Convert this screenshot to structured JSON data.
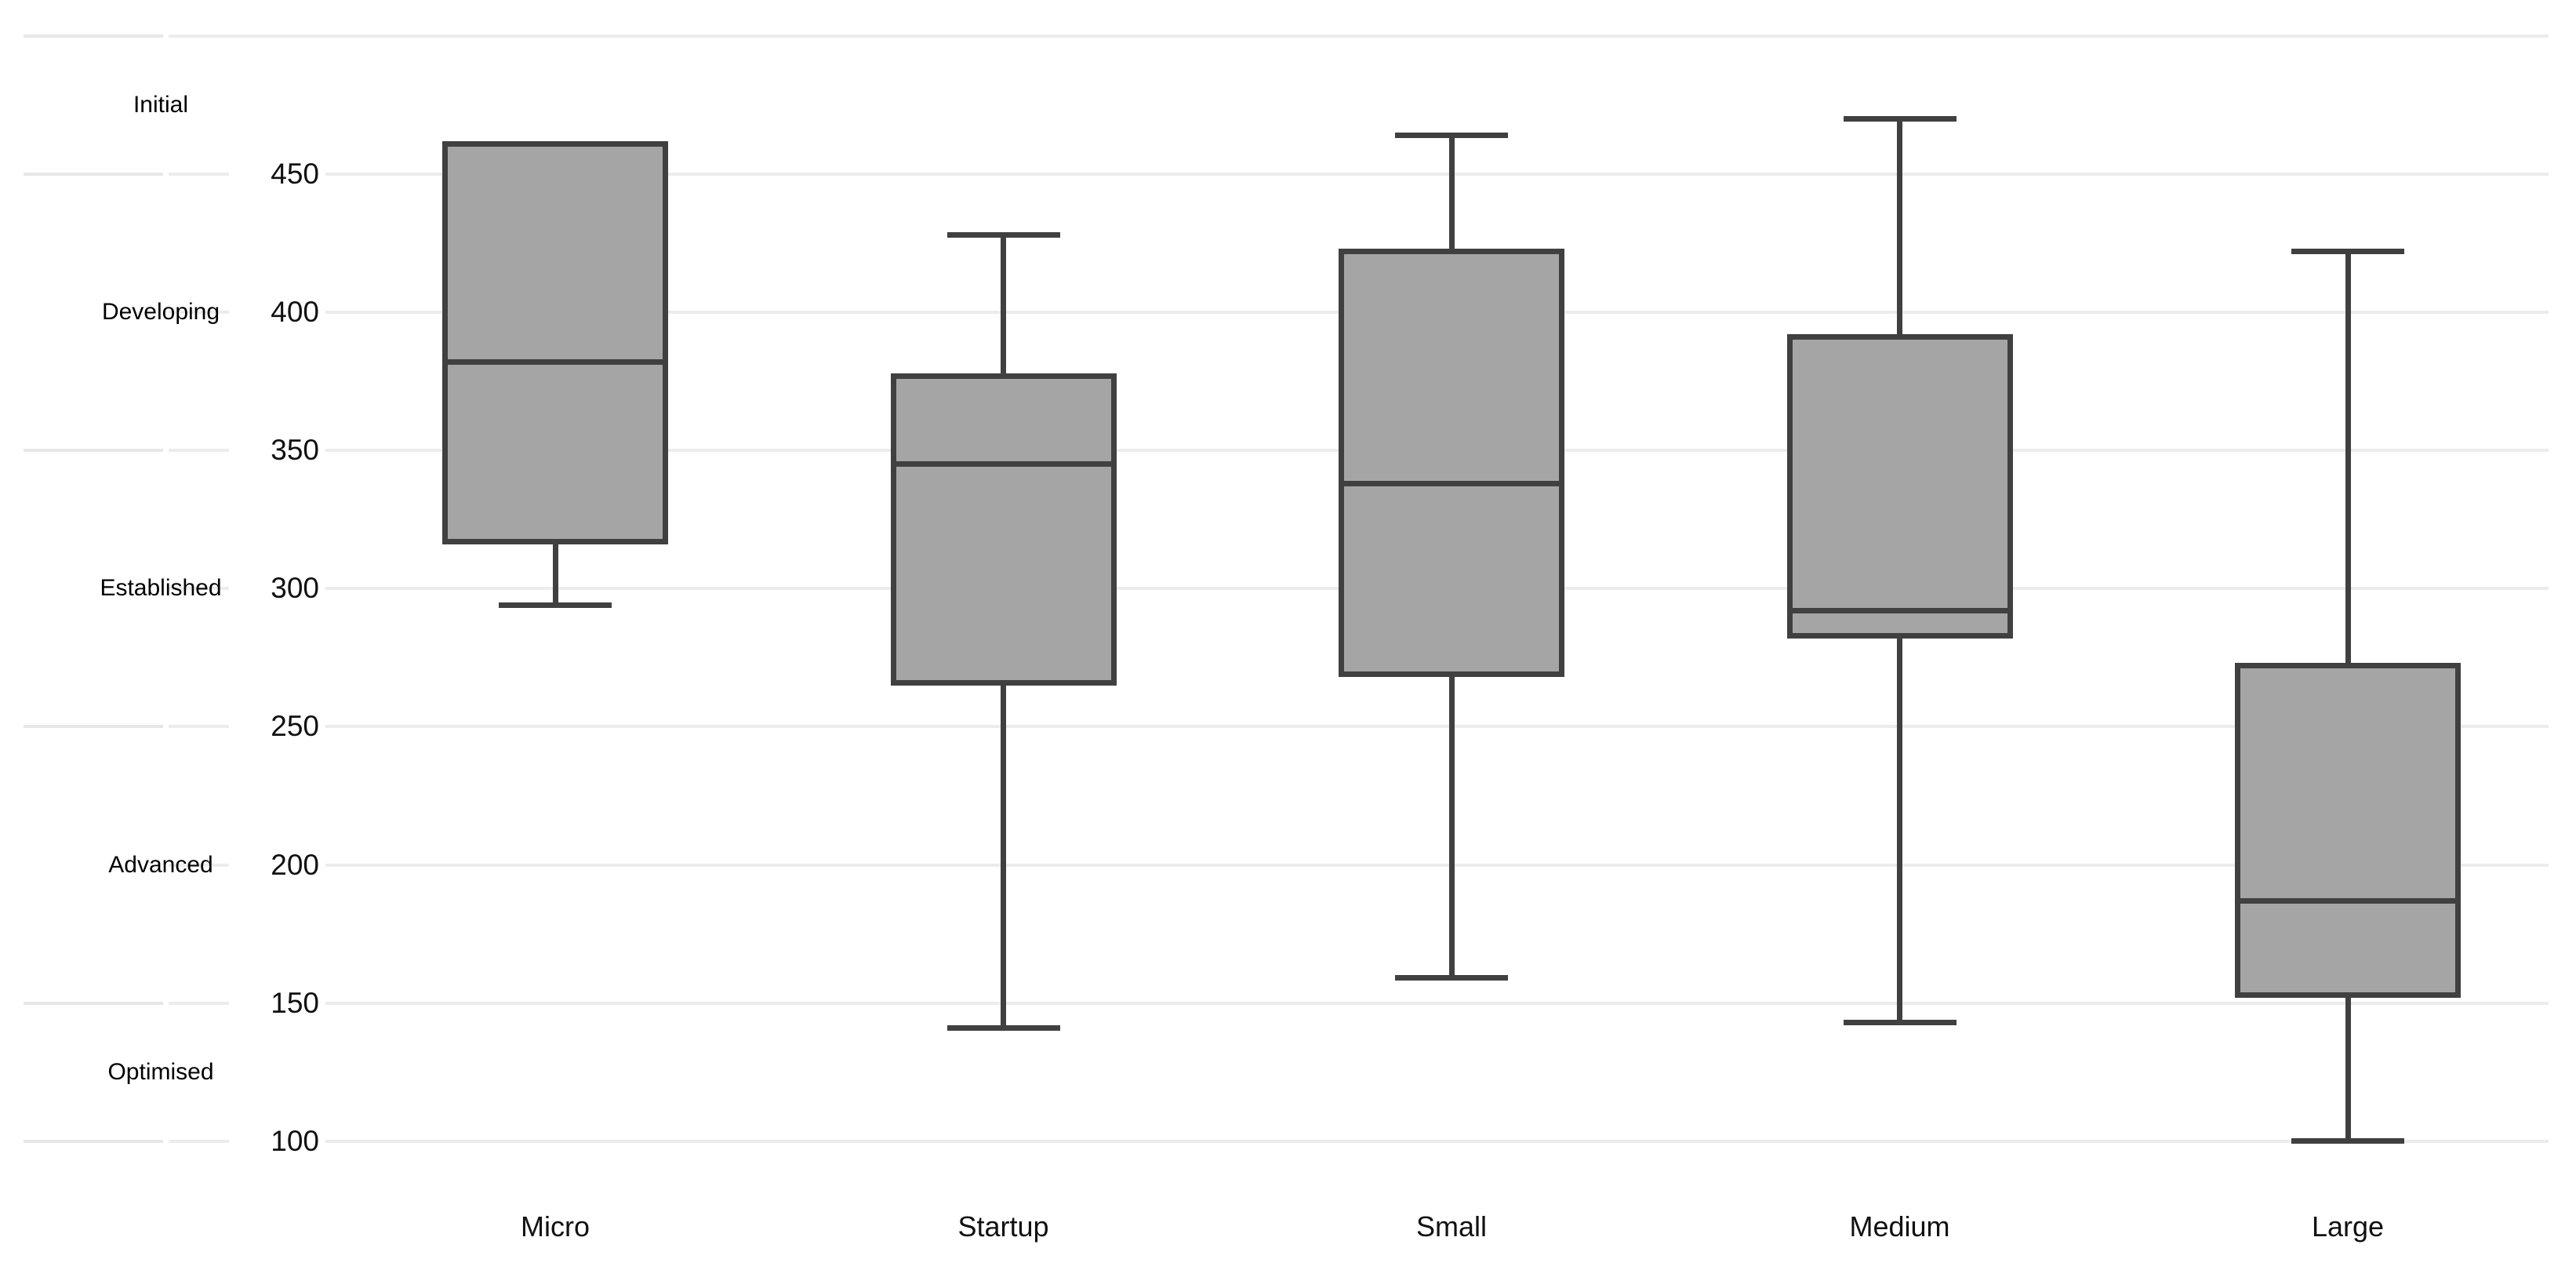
{
  "chart_data": {
    "type": "boxplot",
    "title": "",
    "categories": [
      "Micro",
      "Startup",
      "Small",
      "Medium",
      "Large"
    ],
    "series": [
      {
        "name": "Micro",
        "min": 294,
        "q1": 316,
        "median": 382,
        "q3": 462,
        "max": 462
      },
      {
        "name": "Startup",
        "min": 141,
        "q1": 265,
        "median": 345,
        "q3": 378,
        "max": 428
      },
      {
        "name": "Small",
        "min": 159,
        "q1": 268,
        "median": 338,
        "q3": 423,
        "max": 464
      },
      {
        "name": "Medium",
        "min": 143,
        "q1": 282,
        "median": 292,
        "q3": 392,
        "max": 470
      },
      {
        "name": "Large",
        "min": 100,
        "q1": 152,
        "median": 187,
        "q3": 273,
        "max": 422
      }
    ],
    "y_axis": {
      "min": 100,
      "max": 450,
      "grid_min": 100,
      "grid_max": 500,
      "tick_step": 50,
      "tick_labels": [
        "100",
        "150",
        "200",
        "250",
        "300",
        "350",
        "400",
        "450"
      ]
    },
    "maturity_bands": [
      {
        "label": "Initial",
        "from": 450,
        "to": 500
      },
      {
        "label": "Developing",
        "from": 350,
        "to": 450
      },
      {
        "label": "Established",
        "from": 250,
        "to": 350
      },
      {
        "label": "Advanced",
        "from": 150,
        "to": 250
      },
      {
        "label": "Optimised",
        "from": 100,
        "to": 150
      }
    ],
    "layout_hints": {
      "grid_on": true,
      "legend": "none",
      "whisker_caps": true
    },
    "colors": {
      "background": "#ffffff",
      "box_fill": "#a5a5a5",
      "box_stroke": "#404040",
      "gridline": "#ececec",
      "band_tick": "#e7e7e7",
      "text": "#111111"
    }
  }
}
